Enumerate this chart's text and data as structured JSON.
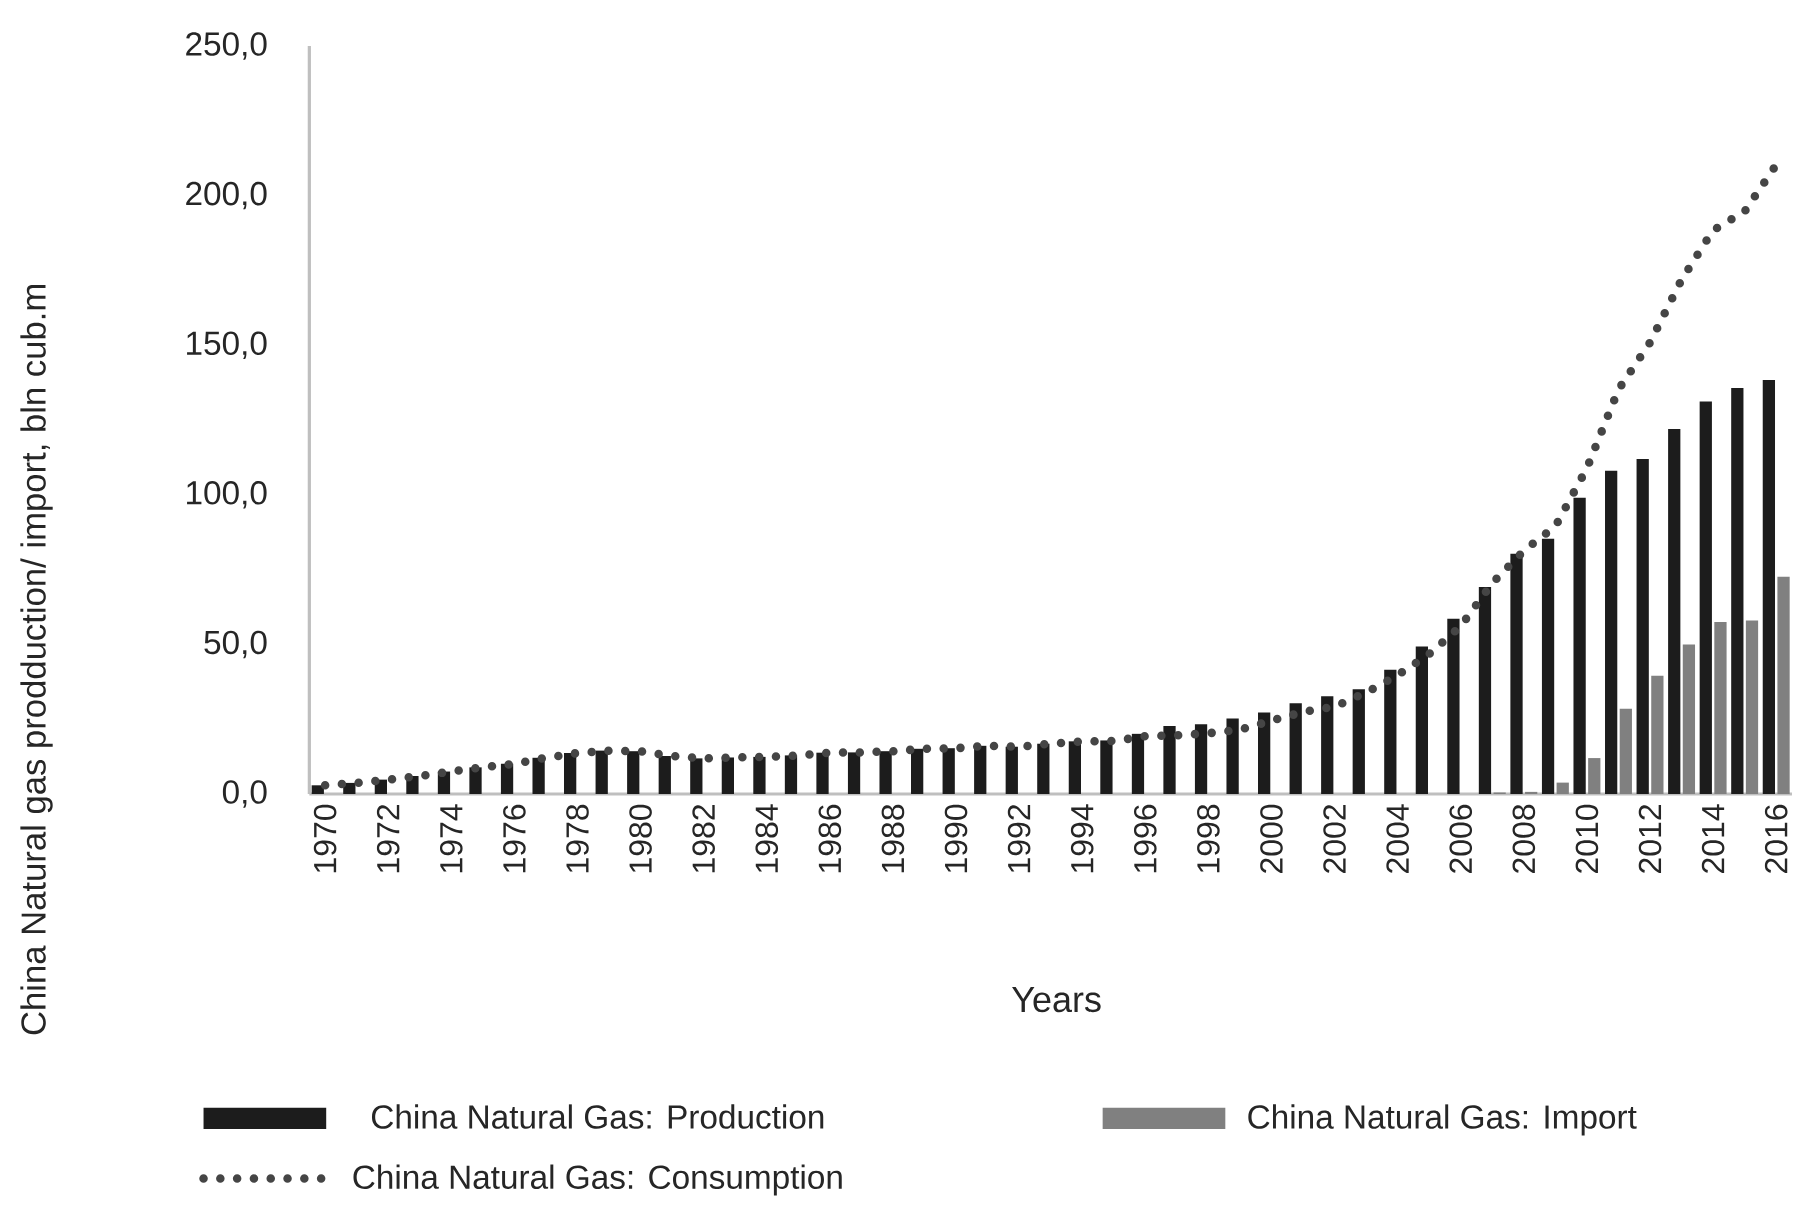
{
  "chart_data": {
    "type": "bar",
    "xlabel": "Years",
    "ylabel": "China Natural gas prodduction/ import, bln cub.m",
    "categories": [
      "1970",
      null,
      "1972",
      null,
      "1974",
      null,
      "1976",
      null,
      "1978",
      null,
      "1980",
      null,
      "1982",
      null,
      "1984",
      null,
      "1986",
      null,
      "1988",
      null,
      "1990",
      null,
      "1992",
      null,
      "1994",
      null,
      "1996",
      null,
      "1998",
      null,
      "2000",
      null,
      "2002",
      null,
      "2004",
      null,
      "2006",
      null,
      "2008",
      null,
      "2010",
      null,
      "2012",
      null,
      "2014",
      null,
      "2016"
    ],
    "series": [
      {
        "name": "China Natural Gas: Production",
        "color": "#1c1c1c",
        "values": [
          2.9,
          3.7,
          4.8,
          6.0,
          7.5,
          8.9,
          10.1,
          12.1,
          13.7,
          14.5,
          14.3,
          12.7,
          11.9,
          12.2,
          12.4,
          12.9,
          13.8,
          13.9,
          14.3,
          15.1,
          15.3,
          16.1,
          15.8,
          16.8,
          17.6,
          17.9,
          20.1,
          22.7,
          23.3,
          25.2,
          27.2,
          30.3,
          32.7,
          35.0,
          41.5,
          49.3,
          58.6,
          69.2,
          80.3,
          85.3,
          99.0,
          108.0,
          112.0,
          122.0,
          131.2,
          135.7,
          138.4
        ]
      },
      {
        "name": "China Natural Gas: Import",
        "color": "#808080",
        "values": [
          null,
          null,
          null,
          null,
          null,
          null,
          null,
          null,
          null,
          null,
          null,
          null,
          null,
          null,
          null,
          null,
          null,
          null,
          null,
          null,
          null,
          null,
          null,
          null,
          null,
          null,
          null,
          null,
          null,
          null,
          null,
          null,
          null,
          null,
          null,
          null,
          null,
          0.5,
          0.7,
          3.8,
          12.0,
          28.5,
          39.5,
          50.0,
          57.5,
          58.0,
          72.6
        ]
      },
      {
        "name": "China Natural Gas: Consumption",
        "type": "line",
        "line_style": "dotted",
        "color": "#454545",
        "values": [
          2.9,
          3.7,
          4.8,
          6.0,
          7.5,
          8.9,
          10.1,
          12.1,
          13.7,
          14.5,
          14.3,
          12.7,
          11.9,
          12.2,
          12.4,
          12.9,
          13.8,
          13.9,
          14.3,
          15.1,
          15.3,
          16.1,
          15.8,
          16.8,
          17.6,
          17.7,
          19.3,
          19.6,
          20.3,
          21.5,
          24.5,
          27.4,
          29.2,
          33.9,
          39.7,
          46.8,
          56.1,
          70.5,
          81.3,
          89.5,
          108.9,
          135.2,
          150.9,
          171.9,
          188.4,
          194.7,
          210.3
        ]
      }
    ],
    "ylim": [
      0,
      250
    ],
    "yticks": [
      {
        "value": 0,
        "label": "0,0"
      },
      {
        "value": 50,
        "label": "50,0"
      },
      {
        "value": 100,
        "label": "100,0"
      },
      {
        "value": 150,
        "label": "150,0"
      },
      {
        "value": 200,
        "label": "200,0"
      },
      {
        "value": 250,
        "label": "250,0"
      }
    ],
    "legend": "bottom"
  }
}
